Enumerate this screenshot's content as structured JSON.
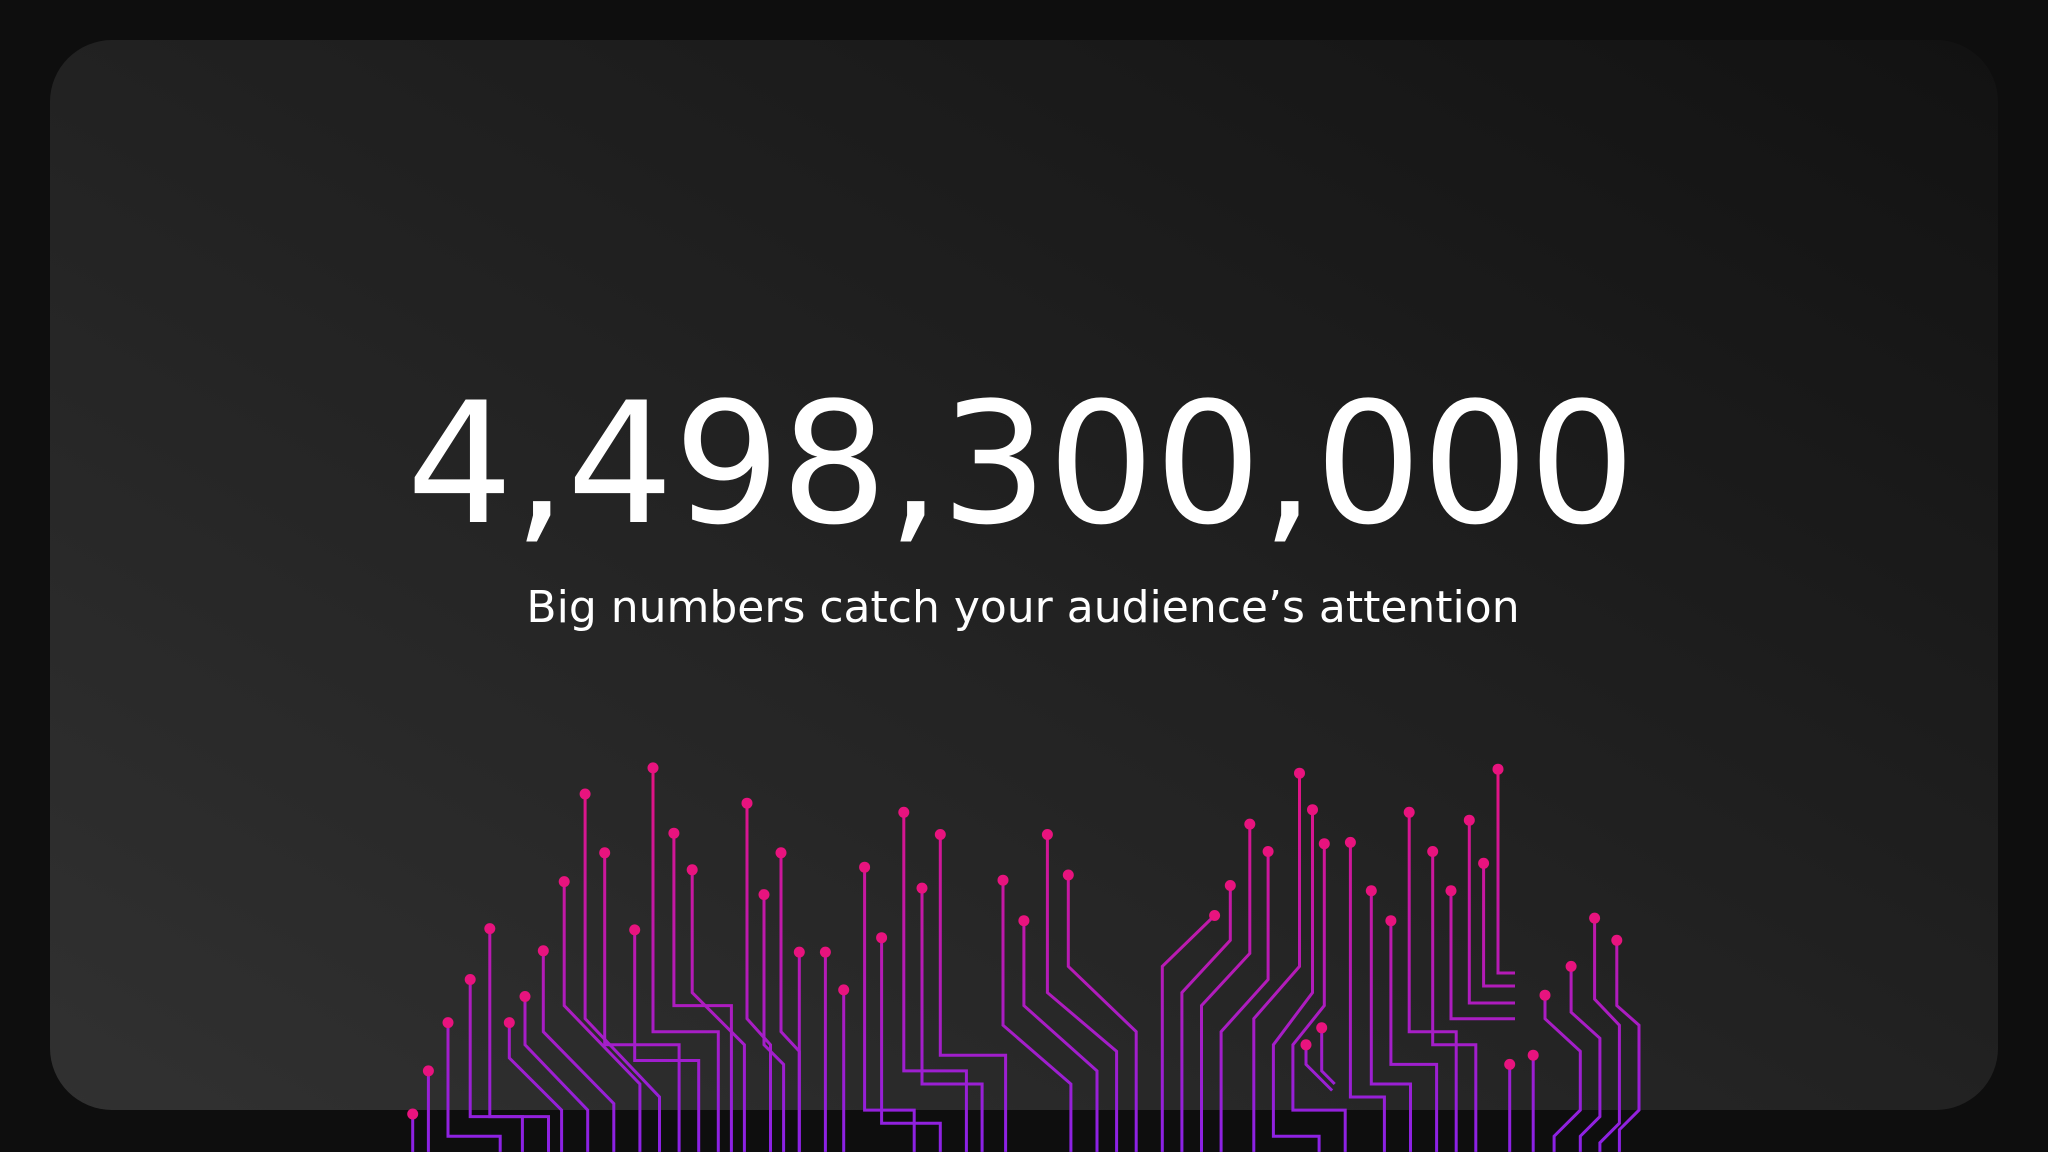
{
  "headline": "4,498,300,000",
  "subtitle": "Big numbers catch your audience’s attention"
}
